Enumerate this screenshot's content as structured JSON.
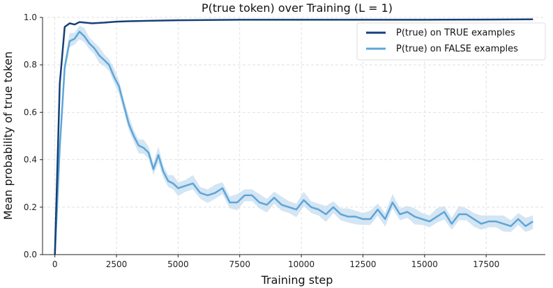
{
  "chart_data": {
    "type": "line",
    "title": "P(true token) over Training (L = 1)",
    "xlabel": "Training step",
    "ylabel": "Mean probability of true token",
    "xlim": [
      -500,
      19900
    ],
    "ylim": [
      0.0,
      1.0
    ],
    "xticks": [
      0,
      2500,
      5000,
      7500,
      10000,
      12500,
      15000,
      17500
    ],
    "xtick_labels": [
      "0",
      "2500",
      "5000",
      "7500",
      "10000",
      "12500",
      "15000",
      "17500"
    ],
    "yticks": [
      0.0,
      0.2,
      0.4,
      0.6,
      0.8,
      1.0
    ],
    "ytick_labels": [
      "0.0",
      "0.2",
      "0.4",
      "0.6",
      "0.8",
      "1.0"
    ],
    "grid": true,
    "legend_position": "top-right",
    "series": [
      {
        "name": "P(true) on TRUE examples",
        "color": "#163f78",
        "x": [
          0,
          200,
          400,
          600,
          800,
          1000,
          1500,
          2000,
          2500,
          3000,
          4000,
          5000,
          7500,
          10000,
          12500,
          15000,
          17500,
          19400
        ],
        "values": [
          0.0,
          0.72,
          0.96,
          0.975,
          0.97,
          0.98,
          0.975,
          0.978,
          0.982,
          0.984,
          0.986,
          0.988,
          0.99,
          0.99,
          0.99,
          0.99,
          0.991,
          0.992
        ]
      },
      {
        "name": "P(true) on FALSE examples",
        "color": "#5da5d8",
        "band_color": "#c6dcef",
        "x": [
          0,
          200,
          400,
          600,
          800,
          1000,
          1200,
          1400,
          1600,
          1800,
          2000,
          2200,
          2400,
          2600,
          2800,
          3000,
          3200,
          3400,
          3600,
          3800,
          4000,
          4200,
          4400,
          4600,
          4800,
          5000,
          5300,
          5600,
          5900,
          6200,
          6500,
          6800,
          7100,
          7400,
          7700,
          8000,
          8300,
          8600,
          8900,
          9200,
          9500,
          9800,
          10100,
          10400,
          10700,
          11000,
          11300,
          11600,
          11900,
          12200,
          12500,
          12800,
          13100,
          13400,
          13700,
          14000,
          14300,
          14600,
          14900,
          15200,
          15500,
          15800,
          16100,
          16400,
          16700,
          17000,
          17300,
          17600,
          17900,
          18200,
          18500,
          18800,
          19100,
          19400
        ],
        "values": [
          0.0,
          0.45,
          0.79,
          0.9,
          0.91,
          0.94,
          0.92,
          0.89,
          0.87,
          0.84,
          0.82,
          0.8,
          0.75,
          0.71,
          0.63,
          0.55,
          0.5,
          0.46,
          0.45,
          0.43,
          0.36,
          0.42,
          0.35,
          0.31,
          0.3,
          0.28,
          0.29,
          0.3,
          0.26,
          0.25,
          0.26,
          0.28,
          0.22,
          0.22,
          0.25,
          0.25,
          0.22,
          0.21,
          0.24,
          0.21,
          0.2,
          0.19,
          0.23,
          0.2,
          0.19,
          0.17,
          0.2,
          0.17,
          0.16,
          0.16,
          0.15,
          0.15,
          0.19,
          0.15,
          0.22,
          0.17,
          0.18,
          0.16,
          0.15,
          0.14,
          0.16,
          0.18,
          0.13,
          0.17,
          0.17,
          0.15,
          0.13,
          0.14,
          0.14,
          0.13,
          0.12,
          0.15,
          0.12,
          0.14
        ],
        "band": 0.025
      }
    ]
  }
}
